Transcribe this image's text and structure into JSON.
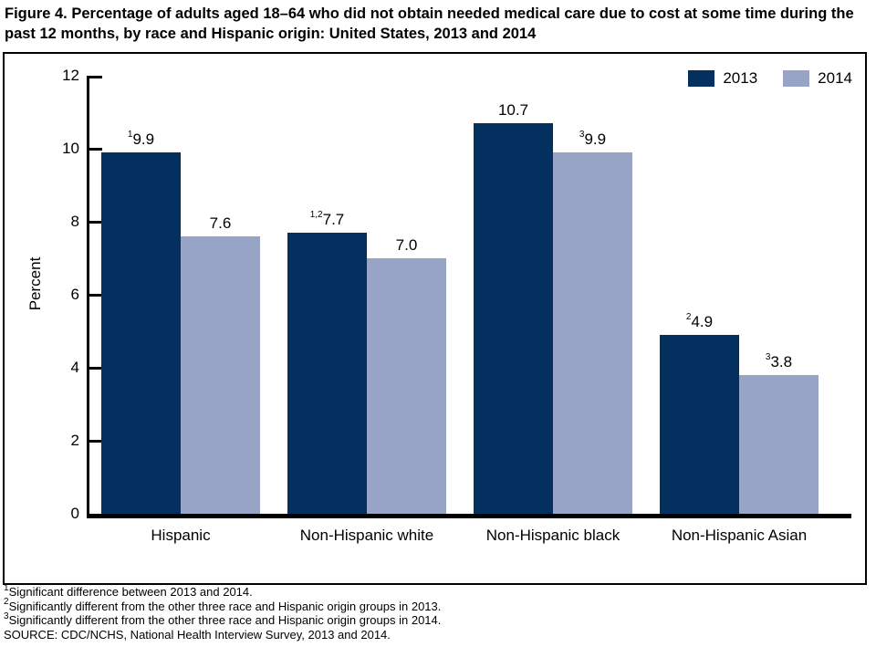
{
  "title": "Figure 4. Percentage of adults aged 18–64 who did not obtain needed medical care due to cost at some time during the past 12 months, by race and Hispanic origin: United States, 2013 and 2014",
  "chart_data": {
    "type": "bar",
    "categories": [
      "Hispanic",
      "Non-Hispanic white",
      "Non-Hispanic black",
      "Non-Hispanic Asian"
    ],
    "series": [
      {
        "name": "2013",
        "color": "#03305E",
        "values": [
          9.9,
          7.7,
          10.7,
          4.9
        ],
        "label_sups": [
          "1",
          "1,2",
          "",
          "2"
        ]
      },
      {
        "name": "2014",
        "color": "#98A4C6",
        "values": [
          7.6,
          7.0,
          9.9,
          3.8
        ],
        "label_sups": [
          "",
          "",
          "3",
          "3"
        ]
      }
    ],
    "title": "",
    "xlabel": "",
    "ylabel": "Percent",
    "ylim": [
      0,
      12
    ],
    "ytick_step": 2,
    "grid": false,
    "legend_position": "top-right",
    "axis_color": "#000000"
  },
  "footnotes": [
    {
      "sup": "1",
      "text": "Significant difference between 2013 and 2014."
    },
    {
      "sup": "2",
      "text": "Significantly different from the other three race and Hispanic origin groups in 2013."
    },
    {
      "sup": "3",
      "text": "Significantly different from the other three race and Hispanic origin groups in 2014."
    },
    {
      "sup": "",
      "text": "SOURCE: CDC/NCHS, National Health Interview Survey, 2013 and 2014."
    }
  ]
}
